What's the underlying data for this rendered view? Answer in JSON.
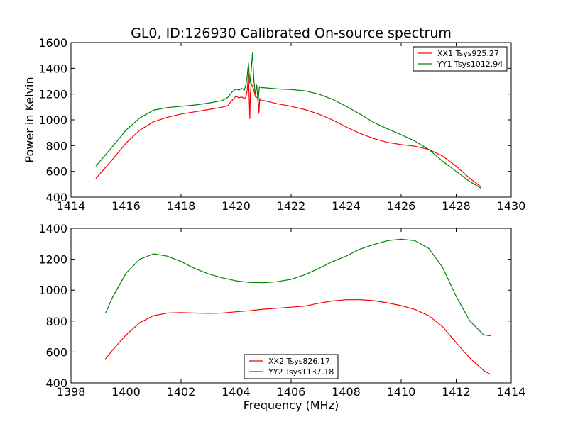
{
  "figure": {
    "title": "GL0, ID:126930 Calibrated On-source spectrum",
    "xlabel": "Frequency (MHz)",
    "ylabel": "Power in Kelvin"
  },
  "chart_data": [
    {
      "type": "line",
      "xlim": [
        1414,
        1430
      ],
      "ylim": [
        400,
        1600
      ],
      "xticks": [
        1414,
        1416,
        1418,
        1420,
        1422,
        1424,
        1426,
        1428,
        1430
      ],
      "yticks": [
        400,
        600,
        800,
        1000,
        1200,
        1400,
        1600
      ],
      "ylabel": "Power in Kelvin",
      "grid": false,
      "legend_position": "top-right",
      "series": [
        {
          "name": "XX1 Tsys925.27",
          "color": "#ff0000",
          "x": [
            1414.9,
            1415.5,
            1416.0,
            1416.5,
            1417.0,
            1417.5,
            1418.0,
            1418.5,
            1419.0,
            1419.5,
            1419.7,
            1419.85,
            1420.0,
            1420.1,
            1420.2,
            1420.3,
            1420.35,
            1420.4,
            1420.45,
            1420.5,
            1420.52,
            1420.55,
            1420.6,
            1420.65,
            1420.7,
            1420.75,
            1420.8,
            1420.83,
            1420.86,
            1420.9,
            1421.0,
            1421.5,
            1422.0,
            1422.5,
            1423.0,
            1423.5,
            1424.0,
            1424.5,
            1425.0,
            1425.5,
            1426.0,
            1426.5,
            1427.0,
            1427.5,
            1428.0,
            1428.5,
            1428.9
          ],
          "y": [
            545,
            690,
            820,
            920,
            985,
            1020,
            1045,
            1062,
            1080,
            1098,
            1110,
            1150,
            1185,
            1170,
            1178,
            1165,
            1175,
            1220,
            1350,
            1010,
            1200,
            1280,
            1260,
            1230,
            1180,
            1175,
            1165,
            1050,
            1165,
            1150,
            1150,
            1125,
            1105,
            1080,
            1045,
            1000,
            945,
            895,
            855,
            825,
            808,
            795,
            770,
            720,
            640,
            545,
            480
          ]
        },
        {
          "name": "YY1 Tsys1012.94",
          "color": "#008000",
          "x": [
            1414.9,
            1415.5,
            1416.0,
            1416.5,
            1417.0,
            1417.5,
            1418.0,
            1418.5,
            1419.0,
            1419.5,
            1419.7,
            1419.85,
            1420.0,
            1420.1,
            1420.2,
            1420.3,
            1420.35,
            1420.4,
            1420.45,
            1420.5,
            1420.55,
            1420.6,
            1420.65,
            1420.7,
            1420.75,
            1420.8,
            1420.85,
            1420.9,
            1421.0,
            1421.5,
            1422.0,
            1422.5,
            1423.0,
            1423.5,
            1424.0,
            1424.5,
            1425.0,
            1425.5,
            1426.0,
            1426.5,
            1427.0,
            1427.5,
            1428.0,
            1428.5,
            1428.9
          ],
          "y": [
            640,
            790,
            920,
            1015,
            1075,
            1095,
            1105,
            1115,
            1130,
            1150,
            1175,
            1215,
            1240,
            1230,
            1245,
            1230,
            1270,
            1330,
            1440,
            1280,
            1380,
            1520,
            1300,
            1200,
            1270,
            1140,
            1260,
            1250,
            1250,
            1240,
            1235,
            1225,
            1200,
            1160,
            1105,
            1045,
            980,
            930,
            885,
            835,
            770,
            680,
            600,
            520,
            470
          ]
        }
      ]
    },
    {
      "type": "line",
      "xlim": [
        1398,
        1414
      ],
      "ylim": [
        400,
        1400
      ],
      "xticks": [
        1398,
        1400,
        1402,
        1404,
        1406,
        1408,
        1410,
        1412,
        1414
      ],
      "yticks": [
        400,
        600,
        800,
        1000,
        1200,
        1400
      ],
      "xlabel": "Frequency (MHz)",
      "grid": false,
      "legend_position": "lower-center",
      "series": [
        {
          "name": "XX2 Tsys826.17",
          "color": "#ff0000",
          "x": [
            1399.25,
            1399.5,
            1400.0,
            1400.5,
            1401.0,
            1401.5,
            1402.0,
            1402.5,
            1403.0,
            1403.5,
            1404.0,
            1404.5,
            1405.0,
            1405.5,
            1406.0,
            1406.5,
            1407.0,
            1407.5,
            1408.0,
            1408.5,
            1409.0,
            1409.5,
            1410.0,
            1410.5,
            1411.0,
            1411.5,
            1412.0,
            1412.5,
            1413.0,
            1413.25
          ],
          "y": [
            555,
            610,
            710,
            790,
            835,
            852,
            855,
            852,
            850,
            852,
            860,
            867,
            877,
            883,
            890,
            897,
            915,
            930,
            938,
            938,
            932,
            918,
            900,
            875,
            835,
            765,
            660,
            560,
            480,
            455
          ]
        },
        {
          "name": "YY2 Tsys1137.18",
          "color": "#008000",
          "x": [
            1399.25,
            1399.5,
            1400.0,
            1400.5,
            1401.0,
            1401.5,
            1402.0,
            1402.5,
            1403.0,
            1403.5,
            1404.0,
            1404.5,
            1405.0,
            1405.5,
            1406.0,
            1406.5,
            1407.0,
            1407.5,
            1408.0,
            1408.5,
            1409.0,
            1409.5,
            1410.0,
            1410.5,
            1411.0,
            1411.5,
            1412.0,
            1412.5,
            1413.0,
            1413.25
          ],
          "y": [
            850,
            950,
            1110,
            1200,
            1235,
            1220,
            1185,
            1140,
            1105,
            1080,
            1060,
            1050,
            1048,
            1055,
            1070,
            1100,
            1140,
            1185,
            1220,
            1265,
            1295,
            1320,
            1330,
            1320,
            1270,
            1150,
            960,
            800,
            710,
            705
          ]
        }
      ]
    }
  ]
}
